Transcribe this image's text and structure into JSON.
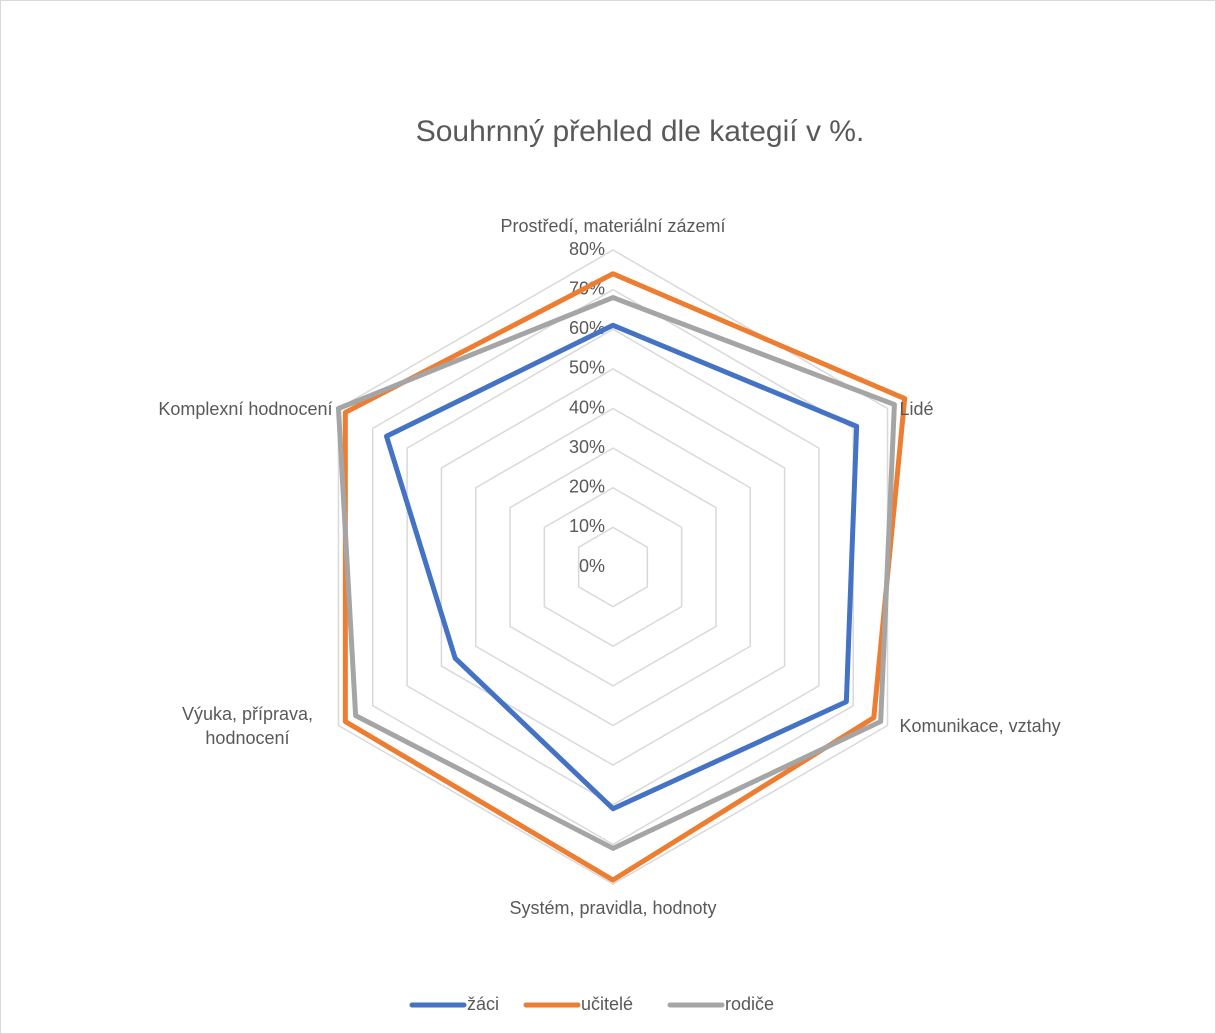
{
  "chart_data": {
    "type": "radar",
    "title": "Souhrnný přehled dle kategií v %.",
    "categories": [
      "Prostředí, materiální zázemí",
      "Lidé",
      "Komunikace, vztahy",
      "Systém, pravidla, hodnoty",
      "Výuka, příprava, hodnocení",
      "Komplexní hodnocení"
    ],
    "series": [
      {
        "name": "žáci",
        "color": "#4472c4",
        "values": [
          61,
          71,
          68,
          61,
          46,
          66
        ]
      },
      {
        "name": "učitelé",
        "color": "#ed7d31",
        "values": [
          74,
          85,
          76,
          79,
          78,
          78
        ]
      },
      {
        "name": "rodiče",
        "color": "#a5a5a5",
        "values": [
          68,
          82,
          78,
          71,
          75,
          80
        ]
      }
    ],
    "ylim": [
      0,
      80
    ],
    "yticks": [
      {
        "value": 0,
        "label": "0%"
      },
      {
        "value": 10,
        "label": "10%"
      },
      {
        "value": 20,
        "label": "20%"
      },
      {
        "value": 30,
        "label": "30%"
      },
      {
        "value": 40,
        "label": "40%"
      },
      {
        "value": 50,
        "label": "50%"
      },
      {
        "value": 60,
        "label": "60%"
      },
      {
        "value": 70,
        "label": "70%"
      },
      {
        "value": 80,
        "label": "80%"
      }
    ],
    "grid": true,
    "legend": "bottom"
  }
}
